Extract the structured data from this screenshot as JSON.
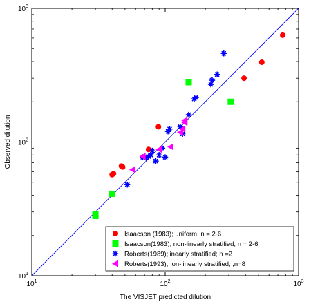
{
  "chart_data": {
    "type": "scatter",
    "title": "",
    "xlabel": "The VISJET predicted dilution",
    "ylabel": "Observed dilution",
    "xscale": "log",
    "yscale": "log",
    "xlim": [
      10,
      1000
    ],
    "ylim": [
      10,
      1000
    ],
    "x_ticks": [
      10,
      100,
      1000
    ],
    "y_ticks": [
      10,
      100,
      1000
    ],
    "tick_base": "10",
    "tick_exponents": [
      "1",
      "2",
      "3"
    ],
    "grid": false,
    "legend_position": "bottom-right",
    "reference_line": {
      "x": [
        10,
        1000
      ],
      "y": [
        10,
        1000
      ],
      "color": "#0000ff"
    },
    "series": [
      {
        "name": "Isaacson (1983); uniform;  n = 2-6",
        "marker": "circle",
        "color": "#ff0000",
        "points": [
          [
            40,
            57
          ],
          [
            41,
            58
          ],
          [
            47,
            66
          ],
          [
            48,
            65
          ],
          [
            75,
            88
          ],
          [
            89,
            130
          ],
          [
            390,
            300
          ],
          [
            530,
            395
          ],
          [
            760,
            630
          ]
        ]
      },
      {
        "name": "Isaacson(1983); non-linearly stratified; n = 2-6",
        "marker": "square",
        "color": "#00ff00",
        "points": [
          [
            30,
            28
          ],
          [
            30,
            29
          ],
          [
            40,
            41
          ],
          [
            150,
            280
          ],
          [
            310,
            200
          ]
        ]
      },
      {
        "name": "Roberts(1989);linearly stratified;  n =2",
        "marker": "star",
        "color": "#0000ff",
        "points": [
          [
            52,
            48
          ],
          [
            68,
            77
          ],
          [
            72,
            76
          ],
          [
            75,
            78
          ],
          [
            78,
            80
          ],
          [
            80,
            86
          ],
          [
            85,
            72
          ],
          [
            90,
            80
          ],
          [
            95,
            90
          ],
          [
            100,
            77
          ],
          [
            105,
            120
          ],
          [
            108,
            125
          ],
          [
            130,
            130
          ],
          [
            135,
            115
          ],
          [
            150,
            160
          ],
          [
            165,
            210
          ],
          [
            170,
            215
          ],
          [
            220,
            270
          ],
          [
            225,
            290
          ],
          [
            245,
            320
          ],
          [
            275,
            460
          ]
        ]
      },
      {
        "name": "Roberts(1993);non-linearly stratified; ,n=8",
        "marker": "triangle-left",
        "color": "#ff00ff",
        "points": [
          [
            57,
            62
          ],
          [
            68,
            78
          ],
          [
            90,
            88
          ],
          [
            110,
            92
          ],
          [
            130,
            118
          ],
          [
            135,
            125
          ],
          [
            140,
            140
          ],
          [
            140,
            145
          ]
        ]
      }
    ]
  }
}
